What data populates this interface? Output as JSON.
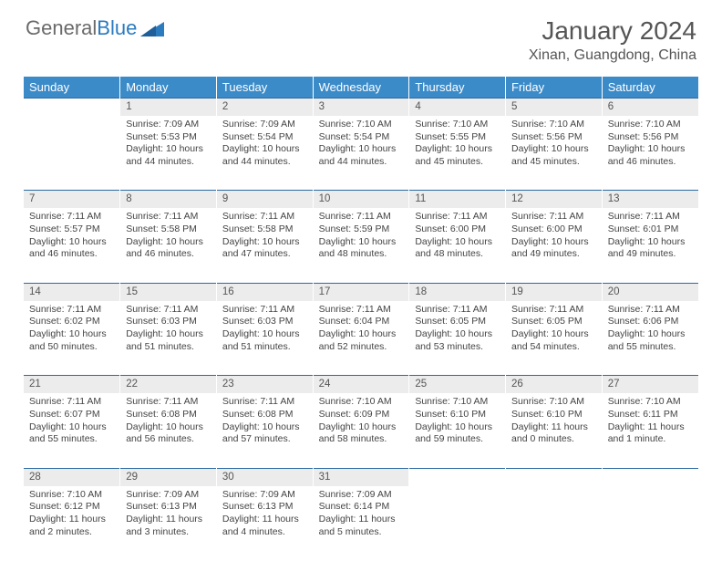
{
  "brand": {
    "part1": "General",
    "part2": "Blue"
  },
  "title": "January 2024",
  "location": "Xinan, Guangdong, China",
  "colors": {
    "header_bg": "#3b8bc9",
    "header_text": "#ffffff",
    "daynum_bg": "#ececec",
    "row_border": "#2d6aa3",
    "text": "#444444",
    "brand_gray": "#6a6a6a",
    "brand_blue": "#2b7bbf"
  },
  "weekdays": [
    "Sunday",
    "Monday",
    "Tuesday",
    "Wednesday",
    "Thursday",
    "Friday",
    "Saturday"
  ],
  "weeks": [
    [
      null,
      {
        "n": "1",
        "sr": "7:09 AM",
        "ss": "5:53 PM",
        "dh": "10",
        "dm": "44"
      },
      {
        "n": "2",
        "sr": "7:09 AM",
        "ss": "5:54 PM",
        "dh": "10",
        "dm": "44"
      },
      {
        "n": "3",
        "sr": "7:10 AM",
        "ss": "5:54 PM",
        "dh": "10",
        "dm": "44"
      },
      {
        "n": "4",
        "sr": "7:10 AM",
        "ss": "5:55 PM",
        "dh": "10",
        "dm": "45"
      },
      {
        "n": "5",
        "sr": "7:10 AM",
        "ss": "5:56 PM",
        "dh": "10",
        "dm": "45"
      },
      {
        "n": "6",
        "sr": "7:10 AM",
        "ss": "5:56 PM",
        "dh": "10",
        "dm": "46"
      }
    ],
    [
      {
        "n": "7",
        "sr": "7:11 AM",
        "ss": "5:57 PM",
        "dh": "10",
        "dm": "46"
      },
      {
        "n": "8",
        "sr": "7:11 AM",
        "ss": "5:58 PM",
        "dh": "10",
        "dm": "46"
      },
      {
        "n": "9",
        "sr": "7:11 AM",
        "ss": "5:58 PM",
        "dh": "10",
        "dm": "47"
      },
      {
        "n": "10",
        "sr": "7:11 AM",
        "ss": "5:59 PM",
        "dh": "10",
        "dm": "48"
      },
      {
        "n": "11",
        "sr": "7:11 AM",
        "ss": "6:00 PM",
        "dh": "10",
        "dm": "48"
      },
      {
        "n": "12",
        "sr": "7:11 AM",
        "ss": "6:00 PM",
        "dh": "10",
        "dm": "49"
      },
      {
        "n": "13",
        "sr": "7:11 AM",
        "ss": "6:01 PM",
        "dh": "10",
        "dm": "49"
      }
    ],
    [
      {
        "n": "14",
        "sr": "7:11 AM",
        "ss": "6:02 PM",
        "dh": "10",
        "dm": "50"
      },
      {
        "n": "15",
        "sr": "7:11 AM",
        "ss": "6:03 PM",
        "dh": "10",
        "dm": "51"
      },
      {
        "n": "16",
        "sr": "7:11 AM",
        "ss": "6:03 PM",
        "dh": "10",
        "dm": "51"
      },
      {
        "n": "17",
        "sr": "7:11 AM",
        "ss": "6:04 PM",
        "dh": "10",
        "dm": "52"
      },
      {
        "n": "18",
        "sr": "7:11 AM",
        "ss": "6:05 PM",
        "dh": "10",
        "dm": "53"
      },
      {
        "n": "19",
        "sr": "7:11 AM",
        "ss": "6:05 PM",
        "dh": "10",
        "dm": "54"
      },
      {
        "n": "20",
        "sr": "7:11 AM",
        "ss": "6:06 PM",
        "dh": "10",
        "dm": "55"
      }
    ],
    [
      {
        "n": "21",
        "sr": "7:11 AM",
        "ss": "6:07 PM",
        "dh": "10",
        "dm": "55"
      },
      {
        "n": "22",
        "sr": "7:11 AM",
        "ss": "6:08 PM",
        "dh": "10",
        "dm": "56"
      },
      {
        "n": "23",
        "sr": "7:11 AM",
        "ss": "6:08 PM",
        "dh": "10",
        "dm": "57"
      },
      {
        "n": "24",
        "sr": "7:10 AM",
        "ss": "6:09 PM",
        "dh": "10",
        "dm": "58"
      },
      {
        "n": "25",
        "sr": "7:10 AM",
        "ss": "6:10 PM",
        "dh": "10",
        "dm": "59"
      },
      {
        "n": "26",
        "sr": "7:10 AM",
        "ss": "6:10 PM",
        "dh": "11",
        "dm": "0"
      },
      {
        "n": "27",
        "sr": "7:10 AM",
        "ss": "6:11 PM",
        "dh": "11",
        "dm": "1"
      }
    ],
    [
      {
        "n": "28",
        "sr": "7:10 AM",
        "ss": "6:12 PM",
        "dh": "11",
        "dm": "2"
      },
      {
        "n": "29",
        "sr": "7:09 AM",
        "ss": "6:13 PM",
        "dh": "11",
        "dm": "3"
      },
      {
        "n": "30",
        "sr": "7:09 AM",
        "ss": "6:13 PM",
        "dh": "11",
        "dm": "4"
      },
      {
        "n": "31",
        "sr": "7:09 AM",
        "ss": "6:14 PM",
        "dh": "11",
        "dm": "5"
      },
      null,
      null,
      null
    ]
  ],
  "labels": {
    "sunrise": "Sunrise:",
    "sunset": "Sunset:",
    "daylight": "Daylight:",
    "hours": "hours",
    "and": "and",
    "minutes": "minutes.",
    "minute": "minute."
  }
}
